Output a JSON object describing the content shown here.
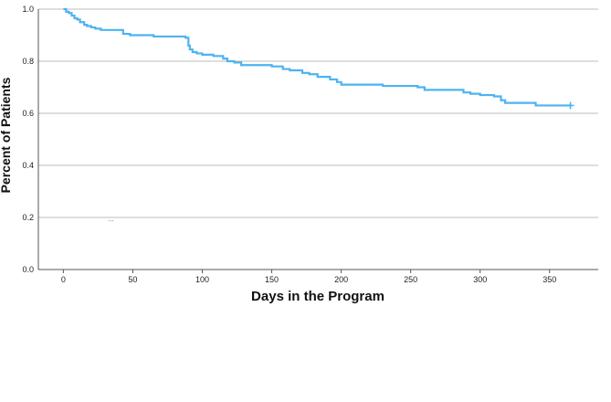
{
  "chart_data": {
    "type": "line",
    "step": true,
    "title": "",
    "xlabel": "Days in the Program",
    "ylabel": "Percent of Patients",
    "xlim": [
      -18,
      385
    ],
    "ylim": [
      0,
      1.0
    ],
    "x_ticks": [
      0,
      50,
      100,
      150,
      200,
      250,
      300,
      350
    ],
    "y_ticks": [
      0.0,
      0.2,
      0.4,
      0.6,
      0.8,
      1.0
    ],
    "x_tick_labels": [
      "0",
      "50",
      "100",
      "150",
      "200",
      "250",
      "300",
      "350"
    ],
    "y_tick_labels": [
      "0.0",
      "0.2",
      "0.4",
      "0.6",
      "0.8",
      "1.0"
    ],
    "grid": "horizontal",
    "line_color": "#4db3f0",
    "censor_marker": "+",
    "stray_mark": "...",
    "series": [
      {
        "x": [
          0,
          2,
          4,
          6,
          8,
          10,
          12,
          15,
          17,
          20,
          23,
          27,
          32,
          43,
          48,
          65,
          88,
          90,
          91,
          93,
          96,
          100,
          108,
          115,
          118,
          123,
          128,
          150,
          158,
          163,
          172,
          177,
          183,
          192,
          197,
          200,
          230,
          255,
          260,
          288,
          293,
          300,
          310,
          315,
          318,
          340,
          365
        ],
        "y": [
          1.0,
          0.99,
          0.985,
          0.975,
          0.965,
          0.96,
          0.95,
          0.94,
          0.935,
          0.93,
          0.925,
          0.92,
          0.92,
          0.905,
          0.9,
          0.895,
          0.89,
          0.86,
          0.845,
          0.835,
          0.83,
          0.825,
          0.82,
          0.81,
          0.8,
          0.795,
          0.785,
          0.78,
          0.77,
          0.765,
          0.755,
          0.75,
          0.74,
          0.73,
          0.72,
          0.71,
          0.705,
          0.7,
          0.69,
          0.68,
          0.675,
          0.67,
          0.665,
          0.65,
          0.64,
          0.63,
          0.63
        ],
        "censored": [
          365
        ]
      }
    ]
  }
}
